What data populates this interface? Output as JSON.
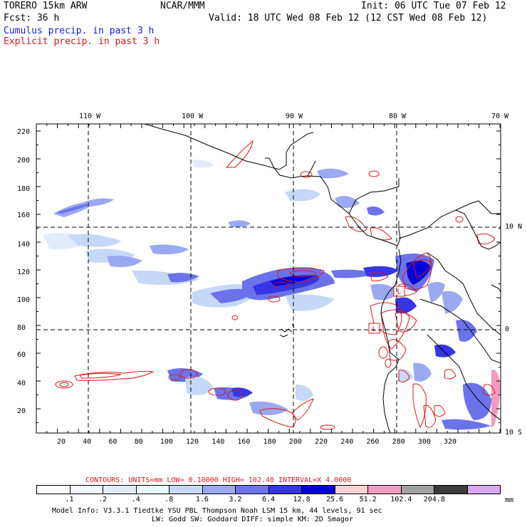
{
  "header": {
    "model": "TORERO  15km ARW",
    "org": "NCAR/MMM",
    "init": "Init: 06 UTC Tue 07 Feb 12",
    "fcst": "Fcst:   36 h",
    "valid": "Valid: 18 UTC Wed 08 Feb 12 (12 CST Wed 08 Feb 12)",
    "legend_cumulus": "Cumulus precip. in past 3 h",
    "legend_explicit": "Explicit precip. in past 3 h"
  },
  "colors": {
    "cumulus": "#1a1acc",
    "explicit": "#d81818",
    "land": "#000000"
  },
  "axes": {
    "top_labels": [
      "110 W",
      "100 W",
      "90 W",
      "80 W",
      "70 W"
    ],
    "right_labels": [
      "10 N",
      "0",
      "10 S"
    ],
    "y_ticks": [
      "220",
      "200",
      "180",
      "160",
      "140",
      "120",
      "100",
      "80",
      "60",
      "40",
      "20"
    ],
    "x_ticks": [
      "20",
      "40",
      "60",
      "80",
      "100",
      "120",
      "140",
      "160",
      "180",
      "200",
      "220",
      "240",
      "260",
      "280",
      "300",
      "320"
    ]
  },
  "contours_info": "CONTOURS:  UNITS=mm  LOW= 0.10000      HIGH=  102.40      INTERVAL=X  4.0000",
  "colorbar": {
    "colors": [
      "#ffffff",
      "#f2f6ff",
      "#e3ecfd",
      "#e9fbff",
      "#c6d8f7",
      "#9aa9f0",
      "#6a73ea",
      "#3636e4",
      "#0000d8",
      "#fbd1d5",
      "#f49ac0",
      "#a0a0a0",
      "#3c3c3c",
      "#d8a8f0"
    ],
    "labels": [
      ".1",
      ".2",
      ".4",
      ".8",
      "1.6",
      "3.2",
      "6.4",
      "12.8",
      "25.6",
      "51.2",
      "102.4",
      "204.8"
    ],
    "unit": "mm"
  },
  "footer": {
    "line1": "Model Info: V3.3.1    Tiedtke YSU PBL  Thompson    Noah LSM  15 km,   44 levels,   91 sec",
    "line2": "LW: Godd SW: Goddard DIFF: simple KM: 2D Smagor"
  }
}
